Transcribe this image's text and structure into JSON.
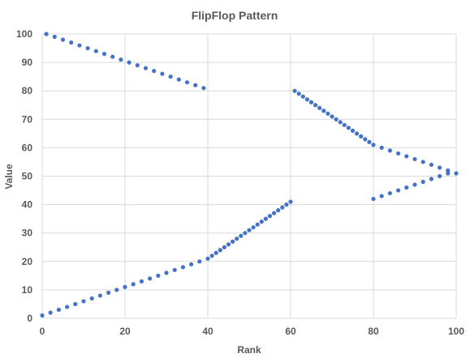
{
  "chart_data": {
    "type": "scatter",
    "title": "FlipFlop Pattern",
    "xlabel": "Rank",
    "ylabel": "Value",
    "xlim": [
      0,
      100
    ],
    "ylim": [
      0,
      100
    ],
    "x_ticks": [
      0,
      20,
      40,
      60,
      80,
      100
    ],
    "y_ticks": [
      0,
      10,
      20,
      30,
      40,
      50,
      60,
      70,
      80,
      90,
      100
    ],
    "grid": true,
    "legend": "none",
    "marker_color": "#4472c4",
    "series": [
      {
        "x": [
          0,
          2,
          4,
          6,
          8,
          10,
          12,
          14,
          16,
          18,
          20,
          22,
          24,
          26,
          28,
          30,
          32,
          34,
          36,
          38,
          40,
          41,
          42,
          43,
          44,
          45,
          46,
          47,
          48,
          49,
          50,
          51,
          52,
          53,
          54,
          55,
          56,
          57,
          58,
          59,
          60,
          61,
          62,
          63,
          64,
          65,
          66,
          67,
          68,
          69,
          70,
          71,
          72,
          73,
          74,
          75,
          76,
          77,
          78,
          79,
          80,
          82,
          84,
          86,
          88,
          90,
          92,
          94,
          96,
          98,
          100,
          1,
          3,
          5,
          7,
          9,
          11,
          13,
          15,
          17,
          19,
          21,
          23,
          25,
          27,
          29,
          31,
          33,
          35,
          37,
          39,
          80,
          82,
          84,
          86,
          88,
          90,
          92,
          94,
          96,
          98
        ],
        "y": [
          1,
          2,
          3,
          4,
          5,
          6,
          7,
          8,
          9,
          10,
          11,
          12,
          13,
          14,
          15,
          16,
          17,
          18,
          19,
          20,
          21,
          22,
          23,
          24,
          25,
          26,
          27,
          28,
          29,
          30,
          31,
          32,
          33,
          34,
          35,
          36,
          37,
          38,
          39,
          40,
          41,
          80,
          79,
          78,
          77,
          76,
          75,
          74,
          73,
          72,
          71,
          70,
          69,
          68,
          67,
          66,
          65,
          64,
          63,
          62,
          61,
          60,
          59,
          58,
          57,
          56,
          55,
          54,
          53,
          52,
          51,
          100,
          99,
          98,
          97,
          96,
          95,
          94,
          93,
          92,
          91,
          90,
          89,
          88,
          87,
          86,
          85,
          84,
          83,
          82,
          81,
          42,
          43,
          44,
          45,
          46,
          47,
          48,
          49,
          50,
          51
        ]
      }
    ]
  }
}
